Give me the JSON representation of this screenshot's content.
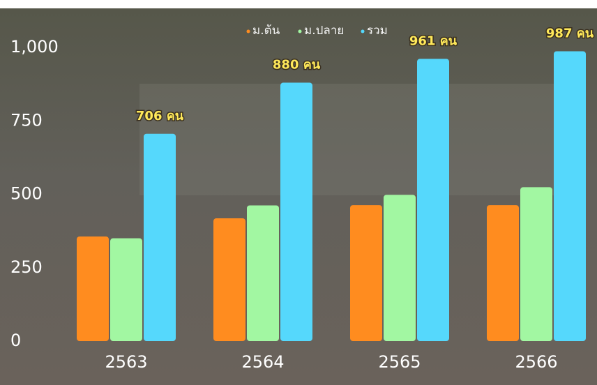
{
  "chart_data": {
    "type": "bar",
    "categories": [
      "2563",
      "2564",
      "2565",
      "2566"
    ],
    "series": [
      {
        "name": "ม.ต้น",
        "color": "#ff8c1f",
        "values": [
          356,
          418,
          463,
          463
        ]
      },
      {
        "name": "ม.ปลาย",
        "color": "#a2f7a2",
        "values": [
          350,
          462,
          498,
          524
        ]
      },
      {
        "name": "รวม",
        "color": "#55d8fc",
        "values": [
          706,
          880,
          961,
          987
        ],
        "value_labels": [
          "706 คน",
          "880 คน",
          "961 คน",
          "987 คน"
        ]
      }
    ],
    "ylim": [
      0,
      1000
    ],
    "yticks": [
      0,
      250,
      500,
      750,
      {
        "value": 1000,
        "label": "1,000"
      }
    ],
    "grid": false,
    "legend": "top"
  }
}
